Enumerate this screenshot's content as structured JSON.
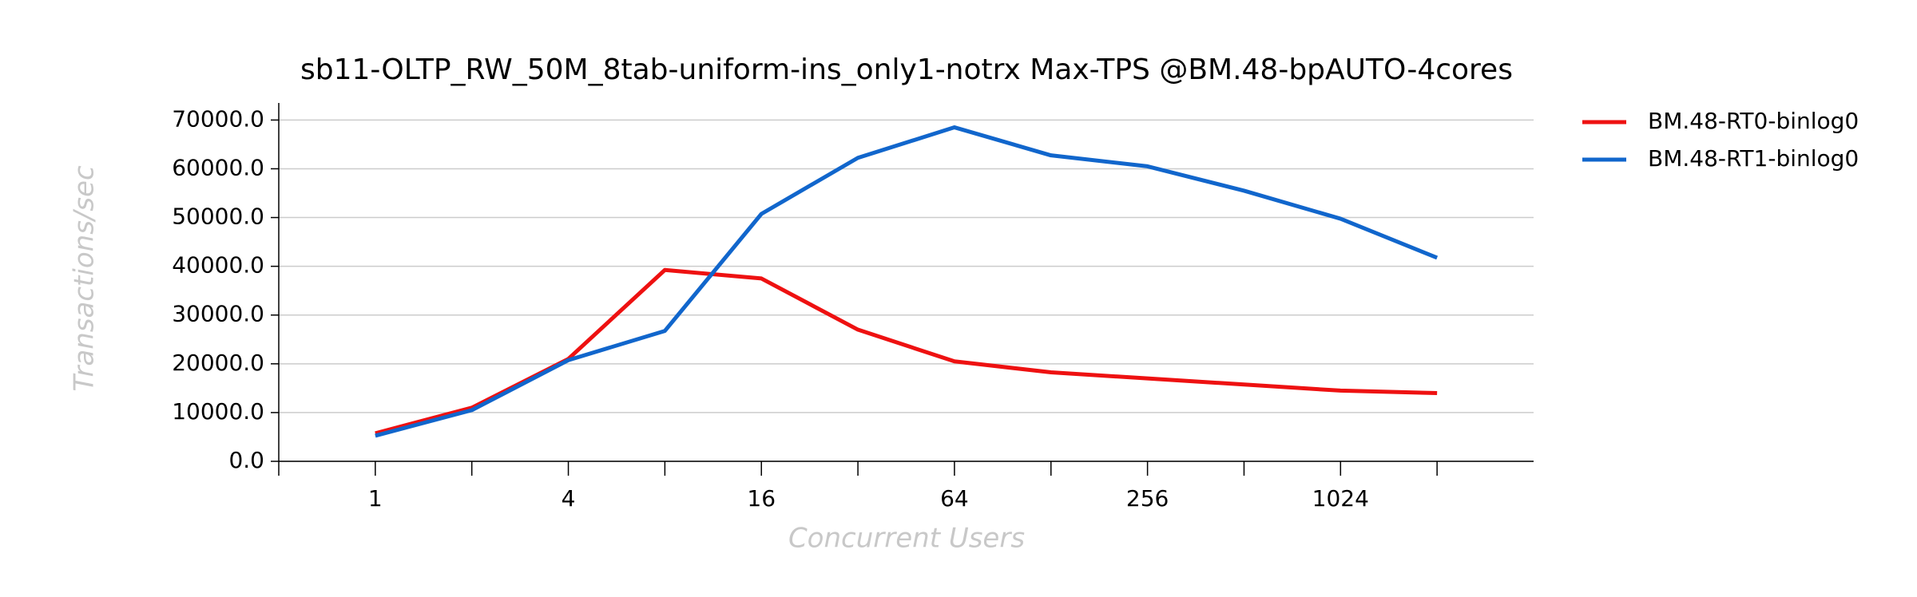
{
  "chart_data": {
    "type": "line",
    "title": "sb11-OLTP_RW_50M_8tab-uniform-ins_only1-notrx Max-TPS @BM.48-bpAUTO-4cores",
    "x_label": "Concurrent Users",
    "y_label": "Transactions/sec",
    "categories": [
      "1",
      null,
      "4",
      null,
      "16",
      null,
      "64",
      null,
      "256",
      null,
      "1024",
      null
    ],
    "series": [
      {
        "name": "BM.48-RT0-binlog0",
        "color": "#ee1111",
        "values": [
          5750,
          11000,
          21000,
          39250,
          37500,
          27000,
          20500,
          18250,
          17000,
          15750,
          14500,
          14000
        ]
      },
      {
        "name": "BM.48-RT1-binlog0",
        "color": "#1166cc",
        "values": [
          5250,
          10500,
          20750,
          26750,
          50750,
          62250,
          68500,
          62750,
          60500,
          55500,
          49750,
          41750
        ]
      }
    ],
    "ylim": [
      0,
      73500
    ],
    "yticks": [
      {
        "value": 0,
        "label": "0.0"
      },
      {
        "value": 10000,
        "label": "10000.0"
      },
      {
        "value": 20000,
        "label": "20000.0"
      },
      {
        "value": 30000,
        "label": "30000.0"
      },
      {
        "value": 40000,
        "label": "40000.0"
      },
      {
        "value": 50000,
        "label": "50000.0"
      },
      {
        "value": 60000,
        "label": "60000.0"
      },
      {
        "value": 70000,
        "label": "70000.0"
      }
    ],
    "grid": true,
    "legend": "outside-right"
  }
}
